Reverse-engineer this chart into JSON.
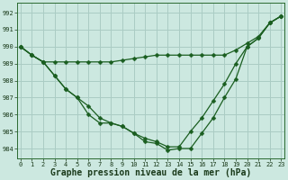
{
  "hours": [
    0,
    1,
    2,
    3,
    4,
    5,
    6,
    7,
    8,
    9,
    10,
    11,
    12,
    13,
    14,
    15,
    16,
    17,
    18,
    19,
    20,
    21,
    22,
    23
  ],
  "line_flat": [
    990.0,
    989.5,
    989.1,
    989.1,
    989.1,
    989.1,
    989.1,
    989.1,
    989.1,
    989.2,
    989.3,
    989.4,
    989.5,
    989.5,
    989.5,
    989.5,
    989.5,
    989.5,
    989.5,
    989.8,
    990.2,
    990.6,
    991.4,
    991.8
  ],
  "line_mid": [
    990.0,
    989.5,
    989.1,
    988.3,
    987.5,
    987.0,
    986.5,
    985.8,
    985.5,
    985.3,
    984.9,
    984.6,
    984.4,
    984.1,
    984.1,
    985.0,
    985.8,
    986.8,
    987.8,
    989.0,
    990.0,
    990.5,
    991.4,
    991.8
  ],
  "line_deep": [
    990.0,
    989.5,
    989.1,
    988.3,
    987.5,
    987.0,
    986.0,
    985.5,
    985.5,
    985.3,
    984.9,
    984.4,
    984.3,
    983.9,
    984.0,
    984.0,
    984.9,
    985.8,
    987.0,
    988.1,
    990.0,
    990.5,
    991.4,
    991.8
  ],
  "bg_color": "#cce8e0",
  "grid_color": "#aaccc4",
  "line_color": "#1a5e20",
  "title": "Graphe pression niveau de la mer (hPa)",
  "ylim_min": 983.4,
  "ylim_max": 992.6,
  "yticks": [
    984,
    985,
    986,
    987,
    988,
    989,
    990,
    991,
    992
  ],
  "marker_size": 2.5,
  "line_width": 0.9,
  "tick_fontsize": 5.0,
  "title_fontsize": 7.0,
  "figw": 3.2,
  "figh": 2.0
}
